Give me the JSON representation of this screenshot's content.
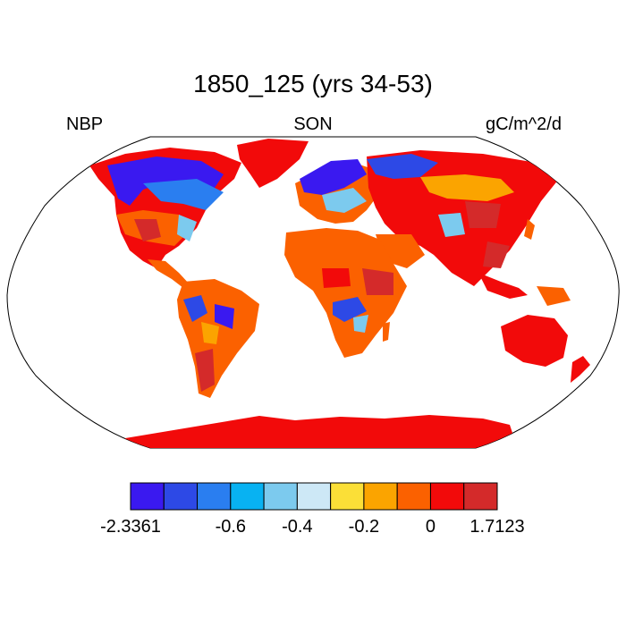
{
  "title": "1850_125 (yrs 34-53)",
  "left_label": "NBP",
  "center_label": "SON",
  "right_label": "gC/m^2/d",
  "colorbar": {
    "colors": [
      "#3a19f0",
      "#2d49e6",
      "#2a7ef0",
      "#08b2f2",
      "#7ccaee",
      "#cde8f6",
      "#fbdf37",
      "#fba400",
      "#fb6100",
      "#f20a0a",
      "#d42a2a"
    ],
    "labels": [
      {
        "text": "-2.3361",
        "boundary": 0
      },
      {
        "text": "-0.6",
        "boundary": 3
      },
      {
        "text": "-0.4",
        "boundary": 5
      },
      {
        "text": "-0.2",
        "boundary": 7
      },
      {
        "text": "0",
        "boundary": 9
      },
      {
        "text": "1.7123",
        "boundary": 11
      }
    ]
  },
  "map": {
    "projection": "Robinson",
    "variable": "NBP",
    "season": "SON",
    "units": "gC/m^2/d",
    "color_summary": {
      "antarctica": "red",
      "tropics_subtropics": "red-orange",
      "boreal_north_america": "blue",
      "boreal_eurasia": "blue",
      "amazon": "mixed blue/red",
      "southern_africa": "blue",
      "australia": "red"
    }
  }
}
